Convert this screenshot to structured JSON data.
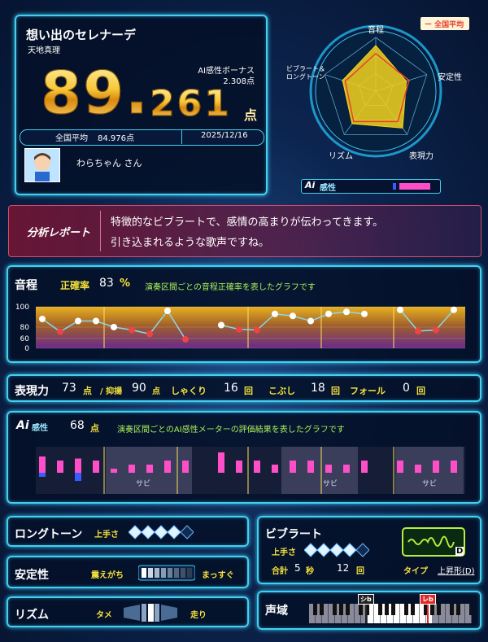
{
  "song": {
    "title": "想い出のセレナーデ",
    "artist": "天地真理"
  },
  "score": {
    "integer": "89.",
    "fraction": "261",
    "unit": "点"
  },
  "ai_bonus": {
    "label": "AI感性ボーナス",
    "value": "2.308点"
  },
  "national_average": {
    "label": "全国平均",
    "value": "84.976点"
  },
  "date": "2025/12/16",
  "user": "わらちゃん さん",
  "radar": {
    "legend": "ー 全国平均",
    "rlim": [
      0,
      100
    ],
    "axes": [
      "音程",
      "安定性",
      "表現力",
      "リズム",
      "ビブラート＆ロングトーン"
    ],
    "series": [
      {
        "name": "score",
        "color": "#f3d21c",
        "values": [
          85,
          60,
          85,
          75,
          65
        ]
      },
      {
        "name": "average",
        "color": "#e8402a",
        "values": [
          70,
          65,
          70,
          70,
          60
        ]
      }
    ]
  },
  "ai_meter_label": "感性",
  "report": {
    "label": "分析レポート",
    "lines": [
      "特徴的なビブラートで、感情の高まりが伝わってきます。",
      "引き込まれるような歌声ですね。"
    ]
  },
  "pitch": {
    "label": "音程",
    "accuracy_label": "正確率",
    "accuracy": "83",
    "accuracy_unit": "%",
    "description": "演奏区間ごとの音程正確率を表したグラフです",
    "yticks": [
      100,
      80,
      60,
      0
    ],
    "values": [
      88,
      72,
      86,
      86,
      80,
      75,
      68,
      96,
      55,
      null,
      82,
      76,
      75,
      93,
      91,
      86,
      93,
      95,
      93,
      null,
      97,
      73,
      75,
      97
    ],
    "colors": [
      "#ffffff",
      "#ee4444",
      "#ffffff",
      "#ffffff",
      "#ffffff",
      "#ee4444",
      "#ee4444",
      "#ffffff",
      "#ee4444",
      null,
      "#ffffff",
      "#ee4444",
      "#ee4444",
      "#ffffff",
      "#ffffff",
      "#ffffff",
      "#ffffff",
      "#ffffff",
      "#ffffff",
      null,
      "#ffffff",
      "#ee4444",
      "#ee4444",
      "#ffffff"
    ]
  },
  "expression": {
    "label": "表現力",
    "score": "73",
    "unit": "点",
    "intonation_label": "/ 抑揚",
    "intonation": "90",
    "intonation_unit": "点",
    "shakuri_label": "しゃくり",
    "shakuri": "16",
    "shakuri_unit": "回",
    "kobushi_label": "こぶし",
    "kobushi": "18",
    "kobushi_unit": "回",
    "fall_label": "フォール",
    "fall": "0",
    "fall_unit": "回"
  },
  "ai": {
    "label": "感性",
    "score": "68",
    "unit": "点",
    "description": "演奏区間ごとのAI感性メーターの評価結果を表したグラフです",
    "series": [
      {
        "name": "positive",
        "color": "#ff4fc8",
        "values": [
          4,
          3,
          3.5,
          3,
          1,
          2,
          2,
          3,
          3,
          null,
          5,
          3,
          3,
          2,
          3,
          3,
          2,
          2,
          3,
          null,
          3,
          2,
          3,
          3
        ]
      },
      {
        "name": "negative",
        "color": "#3a5cff",
        "values": [
          -1,
          null,
          -2,
          null,
          null,
          null,
          null,
          null,
          null,
          null,
          null,
          null,
          null,
          null,
          null,
          null,
          null,
          null,
          null,
          null,
          null,
          null,
          null,
          null
        ]
      }
    ],
    "chorus_labels": [
      "サビ",
      "サビ",
      "サビ"
    ]
  },
  "longtone": {
    "label": "ロングトーン",
    "skill_label": "上手さ"
  },
  "stability": {
    "label": "安定性",
    "left": "震えがち",
    "right": "まっすぐ"
  },
  "rhythm": {
    "label": "リズム",
    "left": "タメ",
    "right": "走り"
  },
  "vibrato": {
    "label": "ビブラート",
    "skill_label": "上手さ",
    "total_label": "合計",
    "seconds": "5",
    "seconds_unit": "秒",
    "count": "12",
    "count_unit": "回",
    "type_label": "タイプ",
    "type": "上昇形(D)",
    "icon_letter": "D"
  },
  "range": {
    "label": "声域",
    "low": "シb",
    "high": "レb"
  }
}
